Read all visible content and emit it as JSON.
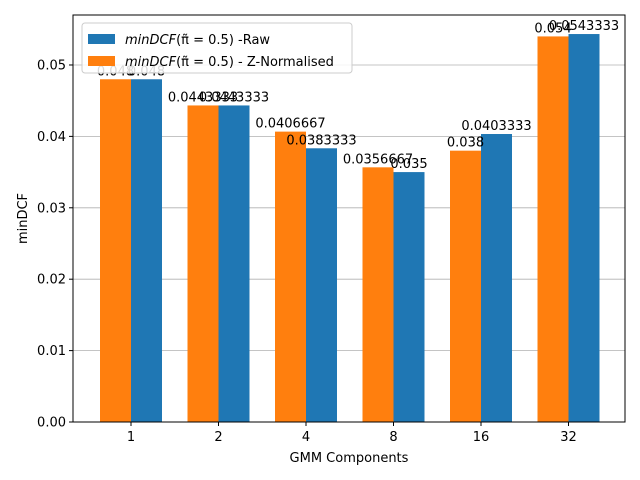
{
  "chart_data": {
    "type": "bar",
    "title": "",
    "xlabel": "GMM Components",
    "ylabel": "minDCF",
    "categories": [
      "1",
      "2",
      "4",
      "8",
      "16",
      "32"
    ],
    "series": [
      {
        "name": "minDCF(π̃ = 0.5) - Z-Normalised",
        "legend_label": {
          "italic": "minDCF",
          "rest": "(π̃ = 0.5) - Z-Normalised"
        },
        "color": "#ff7f0e",
        "values": [
          0.048,
          0.0443333,
          0.0406667,
          0.0356667,
          0.038,
          0.054
        ],
        "labels": [
          "0.048",
          "0.0443333",
          "0.0406667",
          "0.0356667",
          "0.038",
          "0.054"
        ]
      },
      {
        "name": "minDCF(π̃ = 0.5) -Raw",
        "legend_label": {
          "italic": "minDCF",
          "rest": "(π̃ = 0.5) -Raw"
        },
        "color": "#1f77b4",
        "values": [
          0.048,
          0.0443333,
          0.0383333,
          0.035,
          0.0403333,
          0.0543333
        ],
        "labels": [
          "0.048",
          "0.0443333",
          "0.0383333",
          "0.035",
          "0.0403333",
          "0.0543333"
        ]
      }
    ],
    "legend_order": [
      1,
      0
    ],
    "legend_position": "upper-left",
    "ylim": [
      0,
      0.057
    ],
    "yticks": [
      0,
      0.01,
      0.02,
      0.03,
      0.04,
      0.05
    ],
    "ytick_labels": [
      "0.00",
      "0.01",
      "0.02",
      "0.03",
      "0.04",
      "0.05"
    ],
    "grid": "horizontal"
  }
}
